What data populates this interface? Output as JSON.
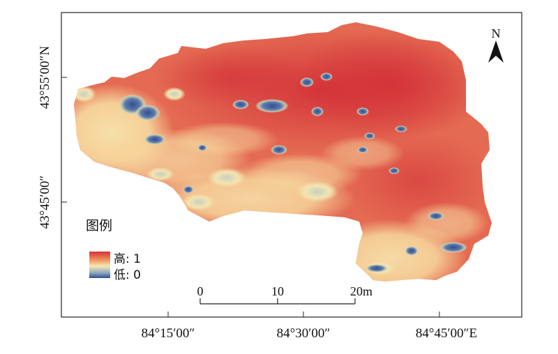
{
  "map": {
    "x_ticks": [
      {
        "label": "84°15′00″"
      },
      {
        "label": "84°30′00″"
      },
      {
        "label": "84°45′00″E"
      }
    ],
    "y_ticks": [
      {
        "label": "43°55′00″N"
      },
      {
        "label": "43°45′00″"
      }
    ],
    "legend": {
      "title": "图例",
      "high_label": "高: 1",
      "low_label": "低: 0",
      "colors": [
        "#d4313a",
        "#ef8e5a",
        "#f7e8b0",
        "#8fa8c0",
        "#2e4f92"
      ]
    },
    "scale_bar": {
      "labels": [
        "0",
        "10",
        "20m"
      ]
    },
    "north_arrow": {
      "label": "N"
    },
    "palette": {
      "high": "#d4313a",
      "mid_high": "#e9745a",
      "mid": "#f5c98e",
      "low_mid": "#f6e7b2",
      "low": "#2f4f93"
    }
  }
}
